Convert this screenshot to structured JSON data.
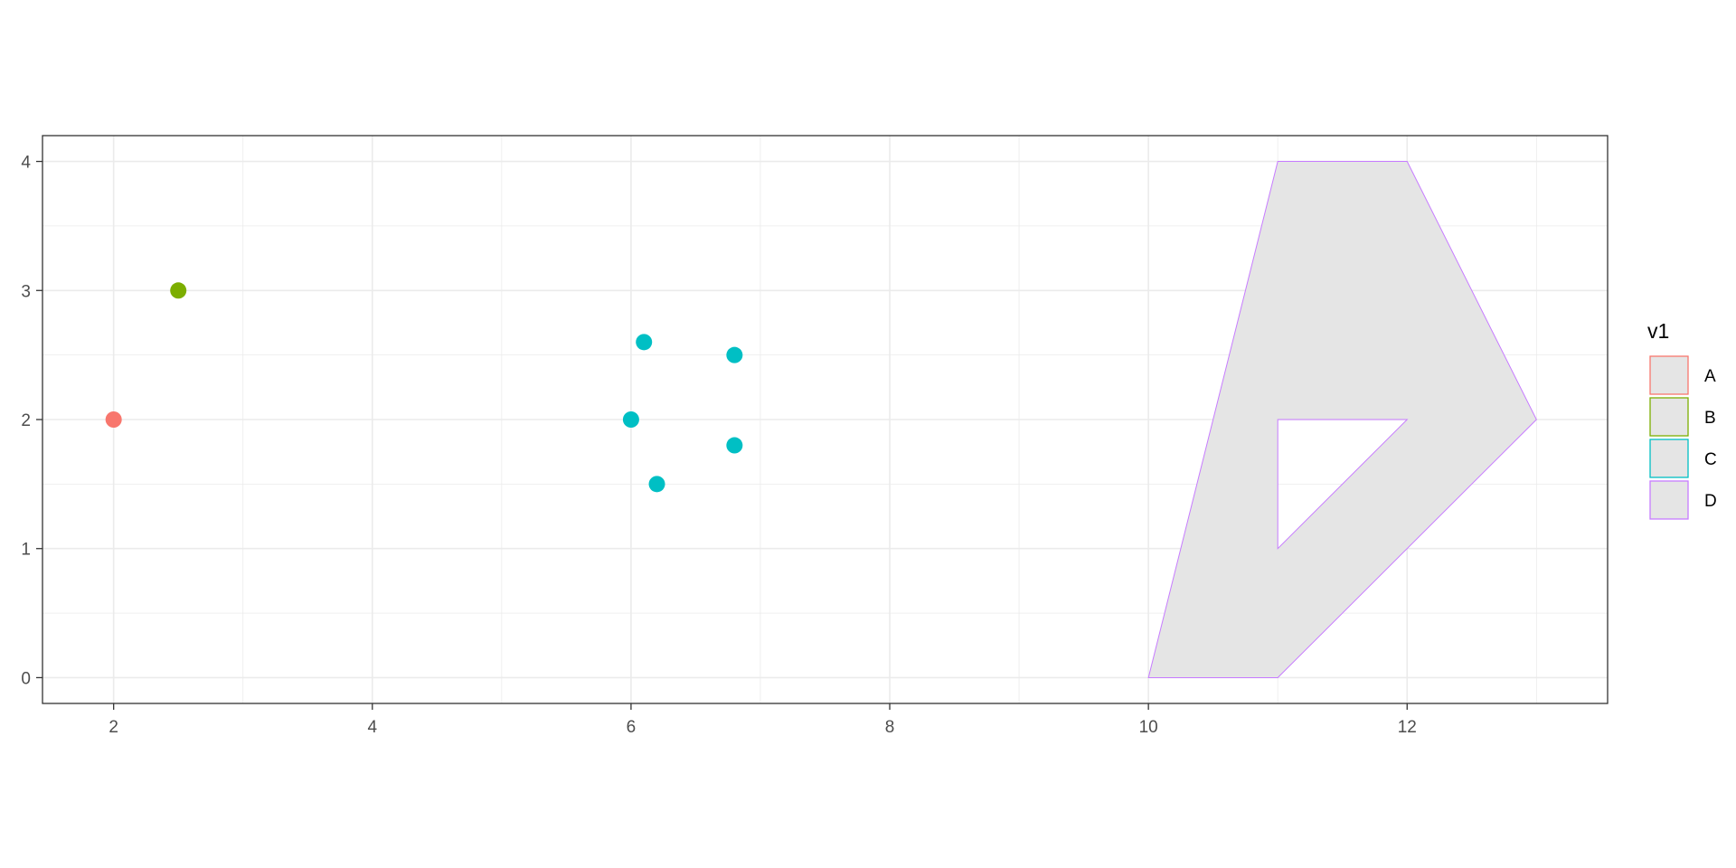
{
  "chart_data": {
    "type": "scatter",
    "xlabel": "",
    "ylabel": "",
    "xlim": [
      1.45,
      13.55
    ],
    "ylim": [
      -0.2,
      4.2
    ],
    "x_ticks": [
      2,
      4,
      6,
      8,
      10,
      12
    ],
    "y_ticks": [
      0,
      1,
      2,
      3,
      4
    ],
    "grid": true,
    "legend": {
      "title": "v1",
      "position": "right",
      "entries": [
        {
          "label": "A",
          "color": "#F8766D"
        },
        {
          "label": "B",
          "color": "#7CAE00"
        },
        {
          "label": "C",
          "color": "#00BFC4"
        },
        {
          "label": "D",
          "color": "#C77CFF"
        }
      ]
    },
    "series": [
      {
        "group": "A",
        "geom": "point",
        "points": [
          {
            "x": 2,
            "y": 2
          }
        ]
      },
      {
        "group": "B",
        "geom": "point",
        "points": [
          {
            "x": 2.5,
            "y": 3
          }
        ]
      },
      {
        "group": "C",
        "geom": "point",
        "points": [
          {
            "x": 6,
            "y": 2
          },
          {
            "x": 6.1,
            "y": 2.6
          },
          {
            "x": 6.8,
            "y": 2.5
          },
          {
            "x": 6.8,
            "y": 1.8
          },
          {
            "x": 6.2,
            "y": 1.5
          }
        ]
      },
      {
        "group": "D",
        "geom": "polygon",
        "outer": [
          [
            10,
            0
          ],
          [
            11,
            4
          ],
          [
            12,
            4
          ],
          [
            13,
            2
          ],
          [
            11,
            0
          ]
        ],
        "hole": [
          [
            11,
            2
          ],
          [
            12,
            2
          ],
          [
            11,
            1
          ]
        ]
      }
    ],
    "colors": {
      "panel_border": "#333333",
      "grid": "#ebebeb",
      "polygon_fill": "#e5e5e5",
      "legend_key_fill": "#e5e5e5"
    }
  }
}
